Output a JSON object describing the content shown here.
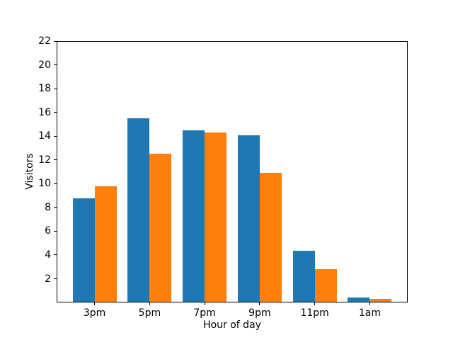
{
  "chart_data": {
    "type": "bar",
    "title": "",
    "xlabel": "Hour of day",
    "ylabel": "Visitors",
    "categories": [
      "3pm",
      "5pm",
      "7pm",
      "9pm",
      "11pm",
      "1am"
    ],
    "series": [
      {
        "name": "blue-series",
        "color": "#1f77b4",
        "values": [
          8.75,
          15.5,
          14.5,
          14.1,
          4.35,
          0.4
        ]
      },
      {
        "name": "orange-series",
        "color": "#ff7f0e",
        "values": [
          9.8,
          12.5,
          14.3,
          10.9,
          2.8,
          0.3
        ]
      }
    ],
    "ylim": [
      0,
      22
    ],
    "yticks": [
      2,
      4,
      6,
      8,
      10,
      12,
      14,
      16,
      18,
      20,
      22
    ],
    "xlim": [
      -0.69,
      5.69
    ],
    "bar_width": 0.4,
    "grid": false,
    "legend": "none",
    "background_color": "#ffffff",
    "spine_color": "#000000"
  }
}
